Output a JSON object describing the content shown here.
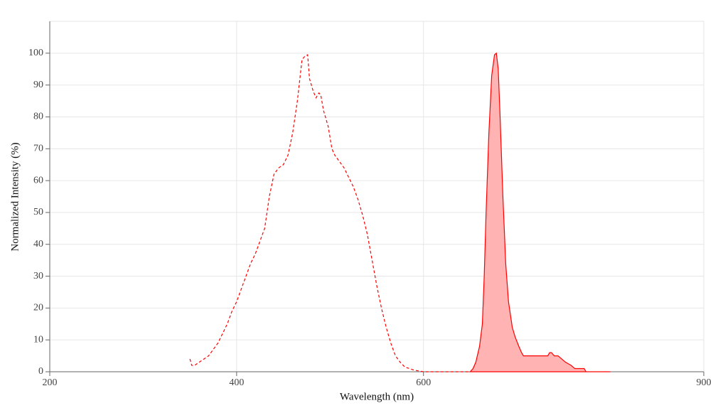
{
  "chart_data": {
    "type": "line",
    "x_label": "Wavelength (nm)",
    "y_label": "Normalized Intensity (%)",
    "xlim": [
      200,
      900
    ],
    "xticks": [
      200,
      400,
      600,
      900
    ],
    "ylim": [
      0,
      110
    ],
    "yticks": [
      0,
      10,
      20,
      30,
      40,
      50,
      60,
      70,
      80,
      90,
      100
    ],
    "grid": true,
    "series": [
      {
        "color": "#ff0000",
        "dashed": true,
        "fill": null,
        "x": [
          350,
          352,
          355,
          360,
          365,
          370,
          375,
          380,
          385,
          390,
          395,
          400,
          405,
          410,
          415,
          420,
          425,
          430,
          435,
          440,
          445,
          450,
          455,
          460,
          465,
          470,
          473,
          476,
          478,
          482,
          485,
          488,
          490,
          493,
          498,
          502,
          505,
          510,
          515,
          520,
          525,
          530,
          535,
          540,
          545,
          550,
          555,
          560,
          565,
          570,
          575,
          580,
          585,
          590,
          600,
          620,
          640,
          650
        ],
        "values": [
          4,
          2,
          2,
          3,
          4,
          5,
          7,
          9,
          12,
          15,
          19,
          22,
          26,
          30,
          34,
          37,
          41,
          45,
          55,
          62,
          64,
          65,
          68,
          75,
          85,
          98,
          99,
          99.5,
          92,
          88,
          86,
          87.5,
          87,
          82,
          77,
          70,
          68,
          66,
          64,
          61,
          58,
          54,
          49,
          43,
          35,
          27,
          20,
          14,
          9,
          5,
          3,
          1.5,
          1,
          0.5,
          0,
          0,
          0,
          0
        ]
      },
      {
        "color": "#ff0000",
        "dashed": false,
        "fill": "#ffb3b3",
        "x": [
          650,
          653,
          656,
          660,
          663,
          665,
          667,
          670,
          673,
          676,
          678,
          680,
          682,
          685,
          688,
          691,
          695,
          698,
          702,
          705,
          707,
          710,
          720,
          733,
          735,
          737,
          740,
          744,
          748,
          752,
          758,
          762,
          772,
          774,
          800
        ],
        "values": [
          0,
          1,
          3,
          8,
          15,
          30,
          50,
          75,
          93,
          99.5,
          100,
          95,
          80,
          55,
          34,
          22,
          14,
          11,
          8,
          6,
          5,
          5,
          5,
          5,
          6,
          6,
          5,
          5,
          4,
          3,
          2,
          1,
          1,
          0,
          0
        ]
      }
    ]
  }
}
